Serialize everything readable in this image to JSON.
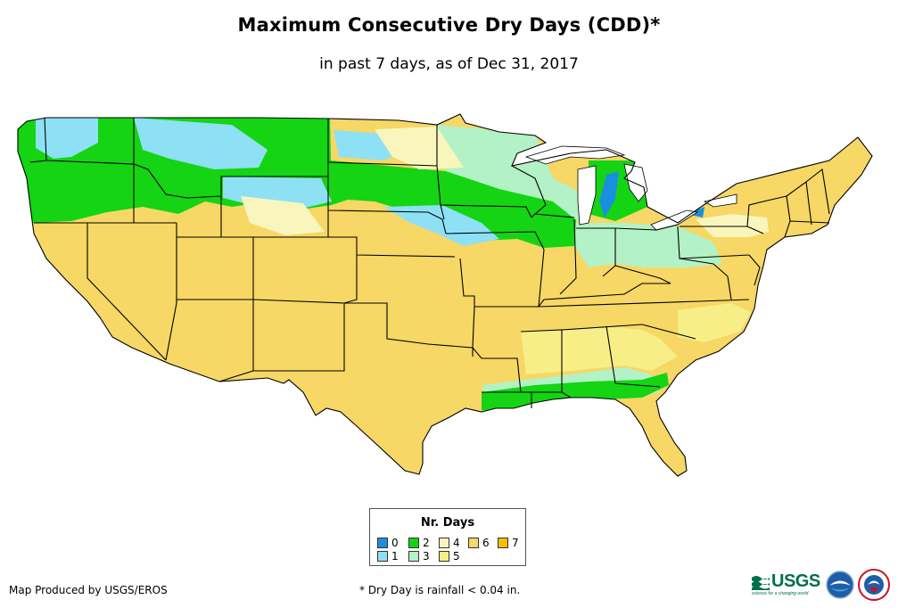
{
  "title": "Maximum Consecutive Dry Days (CDD)*",
  "subtitle": "in past 7 days, as of Dec 31, 2017",
  "legend": {
    "title": "Nr. Days",
    "items": [
      {
        "label": "0",
        "color": "#1a8fe0"
      },
      {
        "label": "1",
        "color": "#8ee0f5"
      },
      {
        "label": "2",
        "color": "#14d414"
      },
      {
        "label": "3",
        "color": "#b2f2c6"
      },
      {
        "label": "4",
        "color": "#f8f6bc"
      },
      {
        "label": "5",
        "color": "#f8ee88"
      },
      {
        "label": "6",
        "color": "#f7d765"
      },
      {
        "label": "7",
        "color": "#f5c000"
      }
    ]
  },
  "credit": "Map Produced by USGS/EROS",
  "footnote": "* Dry Day is rainfall < 0.04 in.",
  "logos": {
    "usgs": "USGS",
    "usgs_tagline": "science for a changing world",
    "noaa_icon": "noaa-seagull-icon",
    "nws_icon": "nws-weather-icon"
  }
}
